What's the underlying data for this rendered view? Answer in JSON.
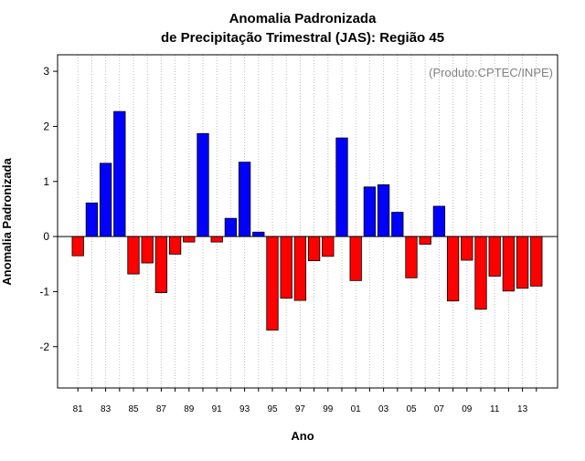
{
  "chart_data": {
    "type": "bar",
    "title_line1": "Anomalia Padronizada",
    "title_line2": "de Precipitação Trimestral (JAS): Região 45",
    "xlabel": "Ano",
    "ylabel": "Anomalia Padronizada",
    "watermark": "(Produto:CPTEC/INPE)",
    "ylim": [
      -2.75,
      3.3
    ],
    "yticks": [
      -2,
      -1,
      0,
      1,
      2,
      3
    ],
    "grid": "vertical-dotted",
    "colors": {
      "positive": "#0000ff",
      "negative": "#ff0000",
      "grid": "#bebebe",
      "axis": "#000000"
    },
    "categories": [
      "81",
      "82",
      "83",
      "84",
      "85",
      "86",
      "87",
      "88",
      "89",
      "90",
      "91",
      "92",
      "93",
      "94",
      "95",
      "96",
      "97",
      "98",
      "99",
      "00",
      "01",
      "02",
      "03",
      "04",
      "05",
      "06",
      "07",
      "08",
      "09",
      "10",
      "11",
      "12",
      "13",
      "14"
    ],
    "tick_labels": [
      "81",
      "83",
      "85",
      "87",
      "89",
      "91",
      "93",
      "95",
      "97",
      "99",
      "01",
      "03",
      "05",
      "07",
      "09",
      "11",
      "13"
    ],
    "values": [
      -0.35,
      0.61,
      1.33,
      2.27,
      -0.68,
      -0.48,
      -1.02,
      -0.32,
      -0.1,
      1.87,
      -0.1,
      0.33,
      1.35,
      0.08,
      -1.7,
      -1.12,
      -1.16,
      -0.44,
      -0.36,
      1.79,
      -0.8,
      0.9,
      0.94,
      0.44,
      -0.75,
      -0.14,
      0.55,
      -1.17,
      -0.43,
      -1.32,
      -0.72,
      -0.99,
      -0.94,
      -0.9
    ]
  }
}
